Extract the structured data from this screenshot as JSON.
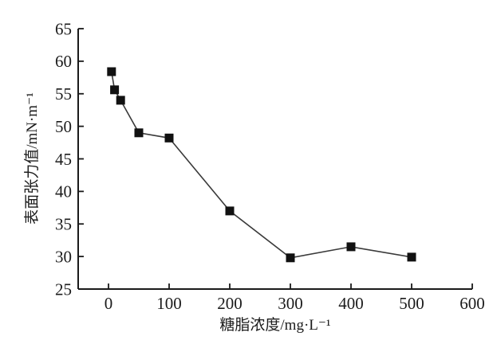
{
  "figure": {
    "background": "#ffffff"
  },
  "chart_data": {
    "type": "line",
    "title": "",
    "xlabel": "糖脂浓度/mg·L⁻¹",
    "ylabel": "表面张力值/mN·m⁻¹",
    "x": [
      5,
      10,
      20,
      50,
      100,
      200,
      300,
      400,
      500
    ],
    "y": [
      58.4,
      55.6,
      54.0,
      49.0,
      48.2,
      37.0,
      29.8,
      31.5,
      29.9
    ],
    "xlim": [
      -50,
      600
    ],
    "ylim": [
      25,
      65
    ],
    "x_ticks": [
      0,
      100,
      200,
      300,
      400,
      500,
      600
    ],
    "y_ticks": [
      25,
      30,
      35,
      40,
      45,
      50,
      55,
      60,
      65
    ],
    "grid": false,
    "legend_position": "none",
    "marker": "square",
    "marker_size": 11,
    "axis_color": "#1a1a1a",
    "line_color": "#3a3a3a",
    "marker_color": "#111111",
    "tick_direction": "in"
  }
}
